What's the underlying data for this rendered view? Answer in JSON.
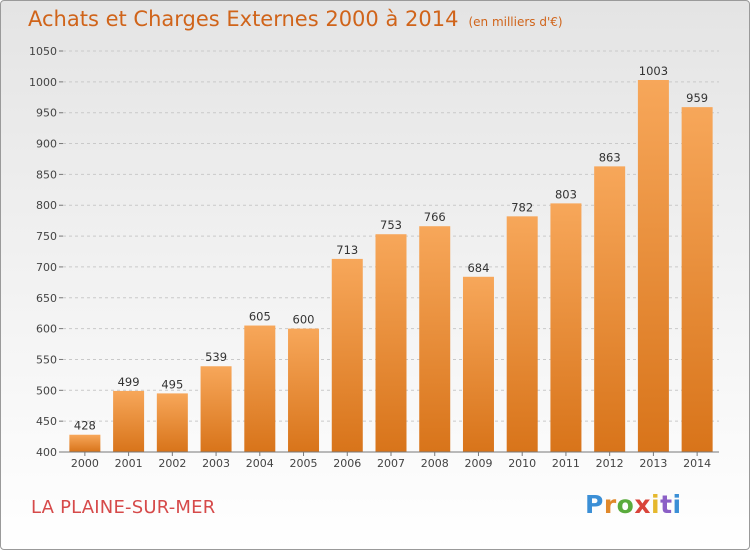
{
  "header": {
    "title": "Achats et Charges Externes 2000 à 2014",
    "unit_note": "(en milliers d'€)"
  },
  "commune": "LA PLAINE-SUR-MER",
  "logo": {
    "text": "Proxiti",
    "colors": [
      "#3b8fd6",
      "#e0882a",
      "#5aab3c",
      "#d9443a",
      "#e5b82d",
      "#8b5fc6"
    ]
  },
  "chart_data": {
    "type": "bar",
    "title": "Achats et Charges Externes 2000 à 2014",
    "xlabel": "",
    "ylabel": "",
    "categories": [
      "2000",
      "2001",
      "2002",
      "2003",
      "2004",
      "2005",
      "2006",
      "2007",
      "2008",
      "2009",
      "2010",
      "2011",
      "2012",
      "2013",
      "2014"
    ],
    "values": [
      428,
      499,
      495,
      539,
      605,
      600,
      713,
      753,
      766,
      684,
      782,
      803,
      863,
      1003,
      959
    ],
    "ylim": [
      400,
      1050
    ],
    "yticks": [
      400,
      450,
      500,
      550,
      600,
      650,
      700,
      750,
      800,
      850,
      900,
      950,
      1000,
      1050
    ],
    "grid": true,
    "bar_color": "#ef8a2b"
  }
}
